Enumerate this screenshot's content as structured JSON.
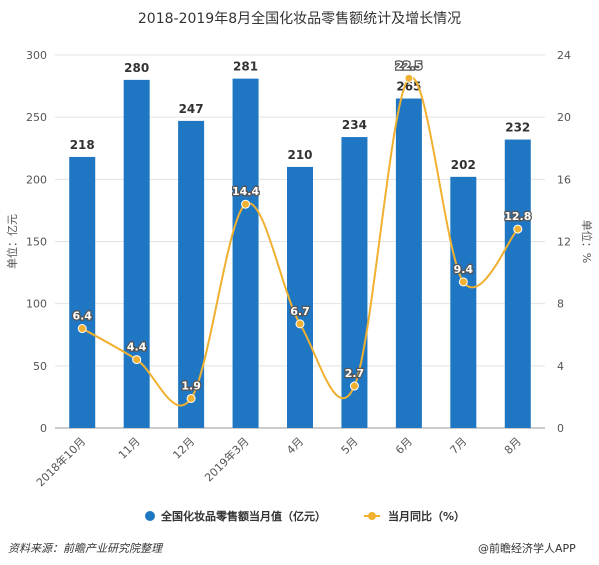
{
  "chart_data": {
    "type": "bar",
    "title": "2018-2019年8月全国化妆品零售额统计及增长情况",
    "categories": [
      "2018年10月",
      "11月",
      "12月",
      "2019年3月",
      "4月",
      "5月",
      "6月",
      "7月",
      "8月"
    ],
    "series": [
      {
        "name": "全国化妆品零售额当月值（亿元）",
        "type": "bar",
        "axis": "left",
        "color": "#1f77c4",
        "values": [
          218,
          280,
          247,
          281,
          210,
          234,
          265,
          202,
          232
        ]
      },
      {
        "name": "当月同比（%）",
        "type": "line",
        "axis": "right",
        "color": "#f0b030",
        "values": [
          6.4,
          4.4,
          1.9,
          14.4,
          6.7,
          2.7,
          22.5,
          9.4,
          12.8
        ]
      }
    ],
    "y_left": {
      "label": "单位：亿元",
      "ticks": [
        "0",
        "50",
        "100",
        "150",
        "200",
        "250",
        "300"
      ],
      "lim": [
        0,
        300
      ]
    },
    "y_right": {
      "label": "单位：%",
      "ticks": [
        "0",
        "4",
        "8",
        "12",
        "16",
        "20",
        "24"
      ],
      "lim": [
        0,
        24
      ]
    },
    "legend_position": "bottom",
    "grid": true
  },
  "footer": {
    "source": "资料来源：前瞻产业研究院整理",
    "watermark": "@前瞻经济学人APP"
  }
}
